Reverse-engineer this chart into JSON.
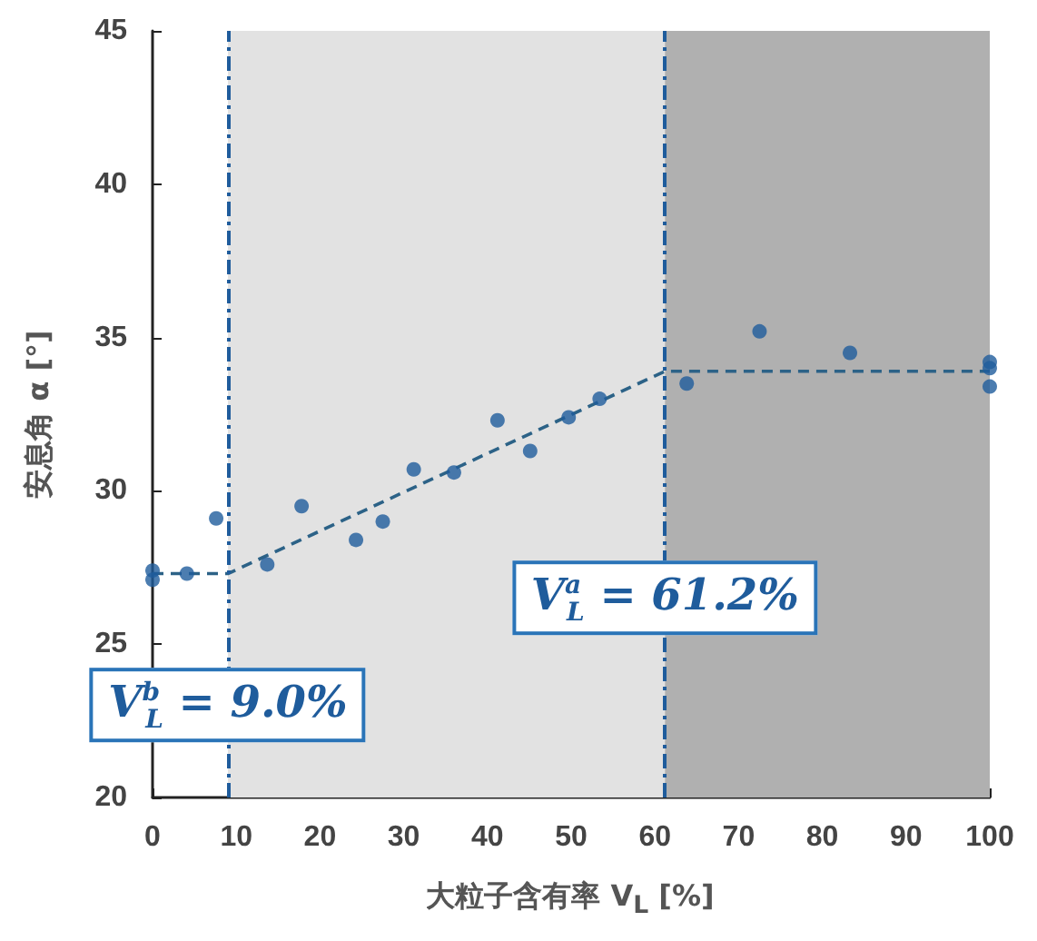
{
  "chart_data": {
    "type": "scatter",
    "xlabel": "大粒子含有率 V$_{L}$ [%]",
    "ylabel": "安息角 α [°]",
    "xlim": [
      0,
      100
    ],
    "xticks": [
      0,
      10,
      20,
      30,
      40,
      50,
      60,
      70,
      80,
      90,
      100
    ],
    "ylim": [
      20,
      45
    ],
    "yticks": [
      20,
      25,
      30,
      35,
      40,
      45
    ],
    "grid": false,
    "marker": "circle",
    "series": [
      {
        "color": "#1f5c9c",
        "x": [
          0,
          0,
          4.1,
          7.6,
          13.7,
          17.8,
          24.3,
          27.5,
          31.2,
          36.0,
          41.2,
          45.1,
          49.7,
          53.4,
          63.8,
          72.5,
          83.3,
          100,
          100,
          100
        ],
        "values": [
          27.4,
          27.1,
          27.3,
          29.1,
          27.6,
          29.5,
          28.4,
          29.0,
          30.7,
          30.6,
          32.3,
          31.3,
          32.4,
          33.0,
          33.5,
          35.2,
          34.5,
          34.2,
          34.0,
          33.4
        ]
      },
      {
        "type": "line",
        "color": "#2c6287",
        "line_style": "dashed",
        "marker": "none",
        "x": [
          0,
          9,
          61.2,
          100
        ],
        "values": [
          27.3,
          27.3,
          33.9,
          33.9
        ]
      }
    ],
    "bands": [
      {
        "axis": "x",
        "from": 9,
        "to": 61.2,
        "color": "#e2e2e2"
      },
      {
        "axis": "x",
        "from": 61.2,
        "to": 100,
        "color": "#b0b0b0"
      }
    ],
    "ref_lines": [
      {
        "axis": "x",
        "value": 9,
        "color": "#1f5c9c",
        "line_style": "dashed"
      },
      {
        "axis": "x",
        "value": 61.2,
        "color": "#1f5c9c",
        "line_style": "dashed"
      }
    ],
    "annotations": [
      {
        "text": "V$^{b}$$_{L}$ = 9.0%",
        "x": 9,
        "y": 23
      },
      {
        "text": "V$^{a}$$_{L}$ = 61.2%",
        "x": 61.2,
        "y": 26.5
      }
    ]
  }
}
